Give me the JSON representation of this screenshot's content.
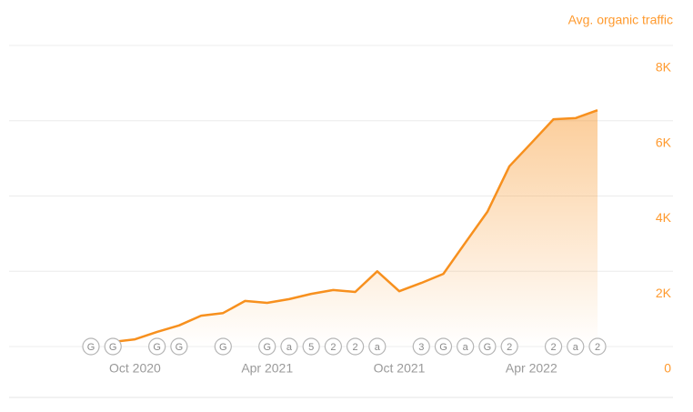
{
  "chart_data": {
    "type": "area",
    "y_axis_label": "Avg. organic traffic",
    "x": [
      "2020-09",
      "2020-10",
      "2020-11",
      "2020-12",
      "2021-01",
      "2021-02",
      "2021-03",
      "2021-04",
      "2021-05",
      "2021-06",
      "2021-07",
      "2021-08",
      "2021-09",
      "2021-10",
      "2021-11",
      "2021-12",
      "2022-01",
      "2022-02",
      "2022-03",
      "2022-04",
      "2022-05",
      "2022-06",
      "2022-07"
    ],
    "values": [
      120,
      190,
      390,
      560,
      820,
      890,
      1210,
      1160,
      1260,
      1400,
      1500,
      1450,
      2000,
      1470,
      1690,
      1930,
      2760,
      3580,
      4790,
      5410,
      6040,
      6070,
      6280
    ],
    "color": "#f7901e",
    "xlim": [
      "2020-08",
      "2022-07"
    ],
    "xticks": [
      {
        "value": "2020-10",
        "label": "Oct 2020"
      },
      {
        "value": "2021-04",
        "label": "Apr 2021"
      },
      {
        "value": "2021-10",
        "label": "Oct 2021"
      },
      {
        "value": "2022-04",
        "label": "Apr 2022"
      }
    ],
    "ylim": [
      0,
      8000
    ],
    "yticks": [
      0,
      {
        "value": 2000,
        "label": "2K"
      },
      {
        "value": 4000,
        "label": "4K"
      },
      {
        "value": 6000,
        "label": "6K"
      },
      {
        "value": 8000,
        "label": "8K"
      }
    ],
    "grid": true,
    "annotations": [
      {
        "x": "2020-08",
        "label": "G"
      },
      {
        "x": "2020-09",
        "label": "G"
      },
      {
        "x": "2020-11",
        "label": "G"
      },
      {
        "x": "2020-12",
        "label": "G"
      },
      {
        "x": "2021-02",
        "label": "G"
      },
      {
        "x": "2021-04",
        "label": "G"
      },
      {
        "x": "2021-05",
        "label": "a"
      },
      {
        "x": "2021-06",
        "label": "5"
      },
      {
        "x": "2021-07",
        "label": "2"
      },
      {
        "x": "2021-08",
        "label": "2"
      },
      {
        "x": "2021-09",
        "label": "a"
      },
      {
        "x": "2021-11",
        "label": "3"
      },
      {
        "x": "2021-12",
        "label": "G"
      },
      {
        "x": "2022-01",
        "label": "a"
      },
      {
        "x": "2022-02",
        "label": "G"
      },
      {
        "x": "2022-03",
        "label": "2"
      },
      {
        "x": "2022-05",
        "label": "2"
      },
      {
        "x": "2022-06",
        "label": "a"
      },
      {
        "x": "2022-07",
        "label": "2"
      }
    ]
  }
}
